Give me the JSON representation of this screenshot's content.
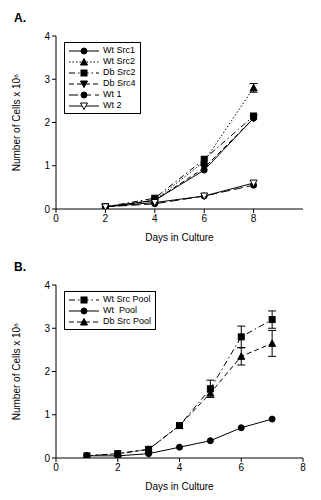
{
  "chart_data": [
    {
      "type": "line",
      "title": "A.",
      "x_label": "Days in Culture",
      "y_label": "Number of Cells x 10⁶",
      "x": [
        2,
        4,
        6,
        8
      ],
      "xlim": [
        0,
        10
      ],
      "xticks": [
        0,
        2,
        4,
        6,
        8
      ],
      "ylim": [
        0,
        4
      ],
      "yticks": [
        0,
        1,
        2,
        3,
        4
      ],
      "legend": "upper left",
      "grid": false,
      "series": [
        {
          "name": "Wt Src1",
          "color": "#000000",
          "marker": "circle",
          "line_style": "solid",
          "values": [
            0.05,
            0.2,
            0.9,
            2.1
          ]
        },
        {
          "name": "Wt Src2",
          "color": "#000000",
          "marker": "triangle",
          "line_style": "dotted",
          "values": [
            0.05,
            0.2,
            1.1,
            2.8
          ],
          "errors": [
            null,
            null,
            null,
            0.1
          ]
        },
        {
          "name": "Db Src2",
          "color": "#000000",
          "marker": "square",
          "line_style": "dashdot",
          "values": [
            0.05,
            0.25,
            1.15,
            2.15
          ]
        },
        {
          "name": "Db Src4",
          "color": "#000000",
          "marker": "triangle_down",
          "line_style": "dashed",
          "values": [
            0.05,
            0.2,
            0.95,
            2.1
          ]
        },
        {
          "name": "Wt 1",
          "color": "#000000",
          "marker": "circle",
          "line_style": "longdash",
          "values": [
            0.05,
            0.12,
            0.3,
            0.55
          ]
        },
        {
          "name": "Wt 2",
          "color": "#000000",
          "marker": "triangle_down_open",
          "line_style": "solid",
          "values": [
            0.05,
            0.15,
            0.3,
            0.6
          ]
        }
      ]
    },
    {
      "type": "line",
      "title": "B.",
      "x_label": "Days in Culture",
      "y_label": "Number of Cells x 10⁶",
      "x": [
        1,
        2,
        3,
        4,
        5,
        6,
        7
      ],
      "xlim": [
        0,
        8
      ],
      "xticks": [
        0,
        2,
        4,
        6,
        8
      ],
      "ylim": [
        0,
        4
      ],
      "yticks": [
        0,
        1,
        2,
        3,
        4
      ],
      "legend": "upper left",
      "grid": false,
      "series": [
        {
          "name": "Wt Src Pool",
          "color": "#000000",
          "marker": "square",
          "line_style": "dashdot",
          "values": [
            0.05,
            0.1,
            0.2,
            0.75,
            1.6,
            2.8,
            3.2
          ],
          "errors": [
            null,
            null,
            null,
            null,
            0.2,
            0.25,
            0.2
          ]
        },
        {
          "name": "Wt  Pool",
          "color": "#000000",
          "marker": "circle",
          "line_style": "solid",
          "values": [
            0.05,
            0.05,
            0.1,
            0.25,
            0.4,
            0.7,
            0.9
          ]
        },
        {
          "name": "Db Src Pool",
          "color": "#000000",
          "marker": "triangle",
          "line_style": "dashed",
          "values": [
            0.05,
            0.1,
            0.2,
            0.75,
            1.5,
            2.35,
            2.65
          ],
          "errors": [
            null,
            null,
            null,
            null,
            null,
            0.2,
            0.3
          ]
        }
      ]
    }
  ]
}
